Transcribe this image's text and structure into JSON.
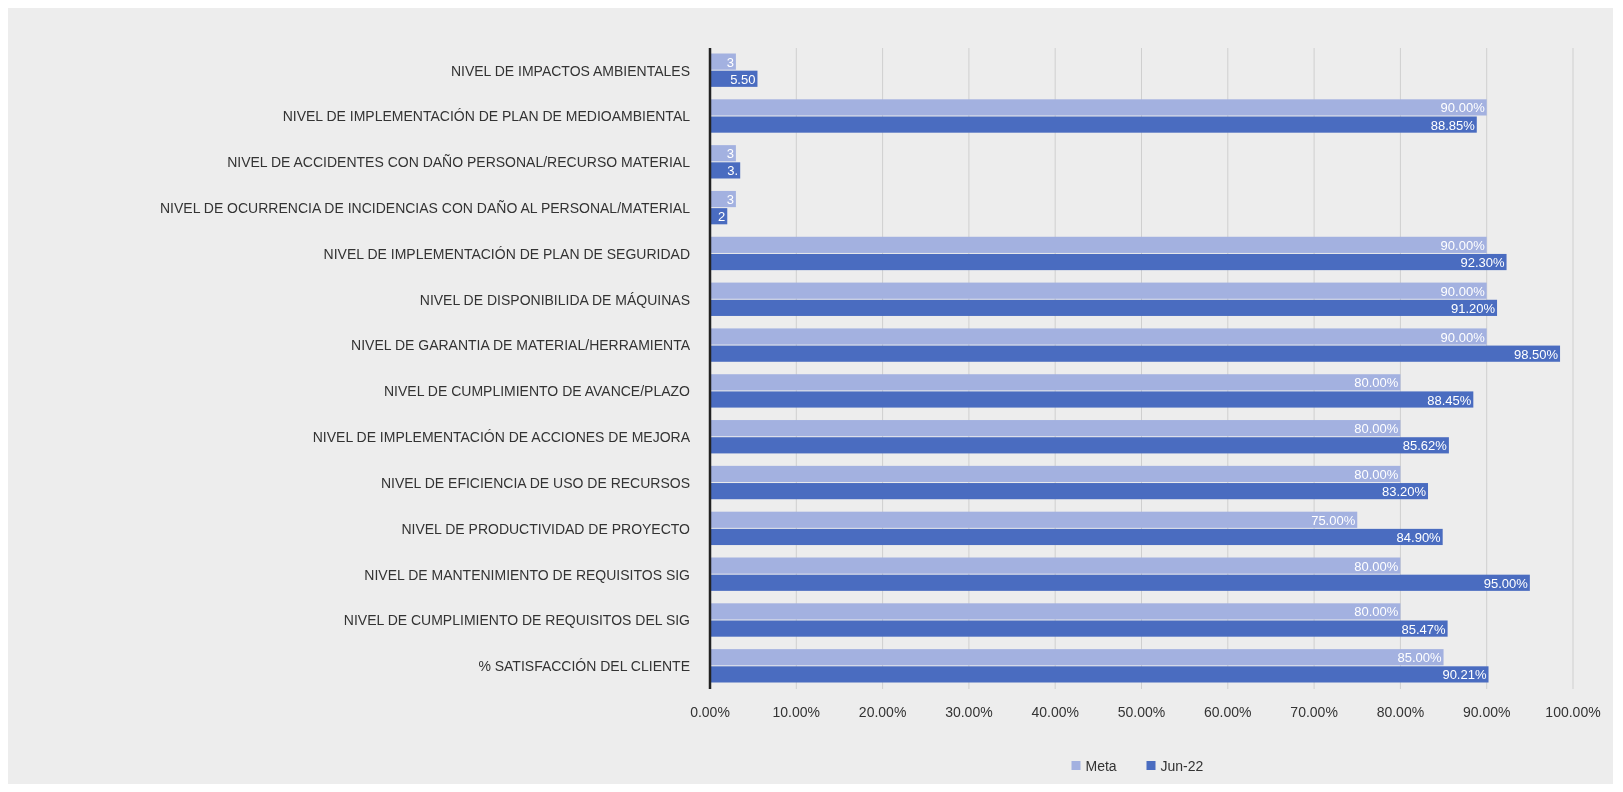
{
  "chart_data": {
    "type": "bar",
    "orientation": "horizontal",
    "categories": [
      "NIVEL DE IMPACTOS AMBIENTALES",
      "NIVEL DE IMPLEMENTACIÓN DE PLAN DE MEDIOAMBIENTAL",
      "NIVEL DE ACCIDENTES CON DAÑO PERSONAL/RECURSO MATERIAL",
      "NIVEL DE OCURRENCIA DE INCIDENCIAS CON DAÑO AL PERSONAL/MATERIAL",
      "NIVEL DE IMPLEMENTACIÓN DE PLAN DE SEGURIDAD",
      "NIVEL DE DISPONIBILIDA DE MÁQUINAS",
      "NIVEL DE GARANTIA DE MATERIAL/HERRAMIENTA",
      "NIVEL DE CUMPLIMIENTO DE AVANCE/PLAZO",
      "NIVEL DE IMPLEMENTACIÓN DE ACCIONES DE MEJORA",
      "NIVEL DE EFICIENCIA DE USO DE RECURSOS",
      "NIVEL DE PRODUCTIVIDAD DE PROYECTO",
      "NIVEL DE MANTENIMIENTO DE REQUISITOS SIG",
      "NIVEL DE CUMPLIMIENTO DE REQUISITOS DEL SIG",
      "% SATISFACCIÓN DEL CLIENTE"
    ],
    "series": [
      {
        "name": "Meta",
        "color": "#a3b1e0",
        "values": [
          3,
          90,
          3,
          3,
          90,
          90,
          90,
          80,
          80,
          80,
          75,
          80,
          80,
          85
        ],
        "value_labels": [
          "3",
          "90.00%",
          "3",
          "3",
          "90.00%",
          "90.00%",
          "90.00%",
          "80.00%",
          "80.00%",
          "80.00%",
          "75.00%",
          "80.00%",
          "80.00%",
          "85.00%"
        ]
      },
      {
        "name": "Jun-22",
        "color": "#4a6cc0",
        "values": [
          5.5,
          88.85,
          3.5,
          2,
          92.3,
          91.2,
          98.5,
          88.45,
          85.62,
          83.2,
          84.9,
          95,
          85.47,
          90.21
        ],
        "value_labels": [
          "5.50",
          "88.85%",
          "3.",
          "2",
          "92.30%",
          "91.20%",
          "98.50%",
          "88.45%",
          "85.62%",
          "83.20%",
          "84.90%",
          "95.00%",
          "85.47%",
          "90.21%"
        ]
      }
    ],
    "xlim": [
      0,
      100
    ],
    "xticks": [
      {
        "value": 0,
        "label": "0.00%"
      },
      {
        "value": 10,
        "label": "10.00%"
      },
      {
        "value": 20,
        "label": "20.00%"
      },
      {
        "value": 30,
        "label": "30.00%"
      },
      {
        "value": 40,
        "label": "40.00%"
      },
      {
        "value": 50,
        "label": "50.00%"
      },
      {
        "value": 60,
        "label": "60.00%"
      },
      {
        "value": 70,
        "label": "70.00%"
      },
      {
        "value": 80,
        "label": "80.00%"
      },
      {
        "value": 90,
        "label": "90.00%"
      },
      {
        "value": 100,
        "label": "100.00%"
      }
    ],
    "grid": "x",
    "legend": "bottom"
  }
}
